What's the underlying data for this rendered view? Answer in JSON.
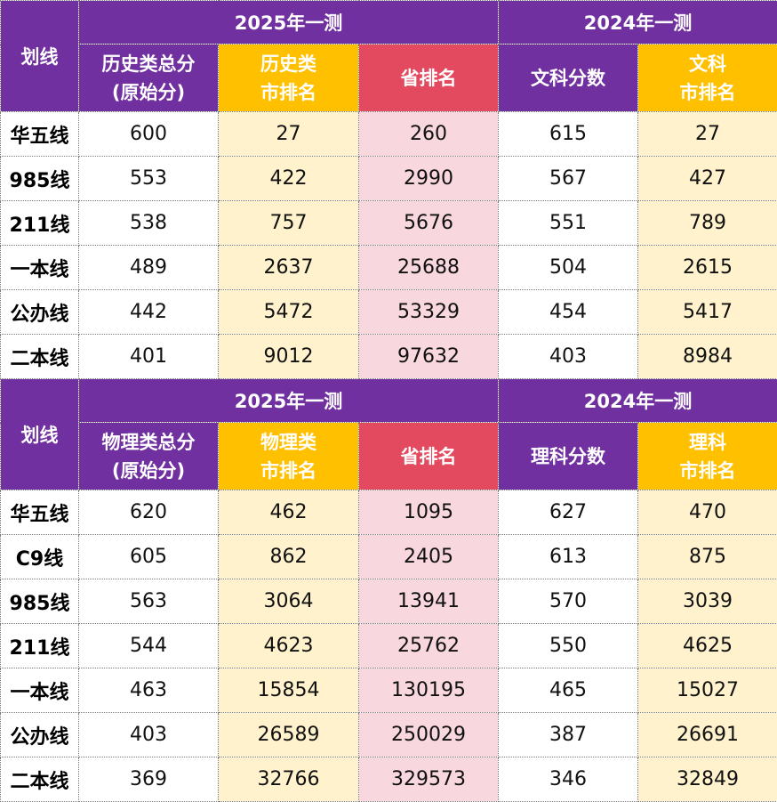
{
  "tables": [
    {
      "year_a": "2025年一测",
      "year_b": "2024年一测",
      "line_header": "划线",
      "headers": [
        [
          "历史类总分",
          "(原始分)"
        ],
        [
          "历史类",
          "市排名"
        ],
        [
          "省排名"
        ],
        [
          "文科分数"
        ],
        [
          "文科",
          "市排名"
        ]
      ],
      "rows": [
        {
          "label": "华五线",
          "values": [
            "600",
            "27",
            "260",
            "615",
            "27"
          ]
        },
        {
          "label": "985线",
          "values": [
            "553",
            "422",
            "2990",
            "567",
            "427"
          ]
        },
        {
          "label": "211线",
          "values": [
            "538",
            "757",
            "5676",
            "551",
            "789"
          ]
        },
        {
          "label": "一本线",
          "values": [
            "489",
            "2637",
            "25688",
            "504",
            "2615"
          ]
        },
        {
          "label": "公办线",
          "values": [
            "442",
            "5472",
            "53329",
            "454",
            "5417"
          ]
        },
        {
          "label": "二本线",
          "values": [
            "401",
            "9012",
            "97632",
            "403",
            "8984"
          ]
        }
      ]
    },
    {
      "year_a": "2025年一测",
      "year_b": "2024年一测",
      "line_header": "划线",
      "headers": [
        [
          "物理类总分",
          "(原始分)"
        ],
        [
          "物理类",
          "市排名"
        ],
        [
          "省排名"
        ],
        [
          "理科分数"
        ],
        [
          "理科",
          "市排名"
        ]
      ],
      "rows": [
        {
          "label": "华五线",
          "values": [
            "620",
            "462",
            "1095",
            "627",
            "470"
          ]
        },
        {
          "label": "C9线",
          "values": [
            "605",
            "862",
            "2405",
            "613",
            "875"
          ]
        },
        {
          "label": "985线",
          "values": [
            "563",
            "3064",
            "13941",
            "570",
            "3039"
          ]
        },
        {
          "label": "211线",
          "values": [
            "544",
            "4623",
            "25762",
            "550",
            "4625"
          ]
        },
        {
          "label": "一本线",
          "values": [
            "463",
            "15854",
            "130195",
            "465",
            "15027"
          ]
        },
        {
          "label": "公办线",
          "values": [
            "403",
            "26589",
            "250029",
            "387",
            "26691"
          ]
        },
        {
          "label": "二本线",
          "values": [
            "369",
            "32766",
            "329573",
            "346",
            "32849"
          ]
        }
      ]
    }
  ],
  "colors": {
    "header_purple": "#7030a0",
    "header_gold": "#ffc000",
    "header_red": "#e34a5f",
    "cell_cream": "#fff2cc",
    "cell_pink": "#f8d7de"
  }
}
